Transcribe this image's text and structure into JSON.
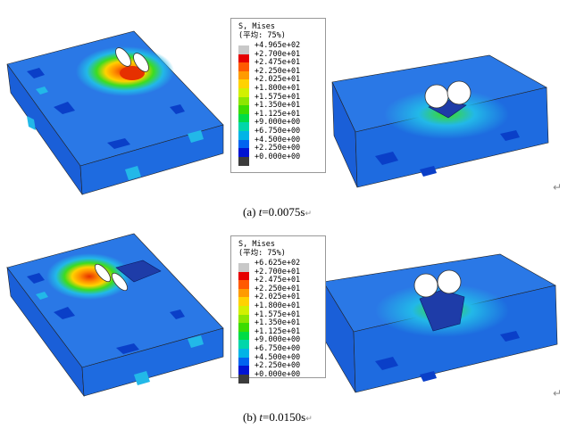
{
  "panels": [
    {
      "legend": {
        "title_line1": "S, Mises",
        "title_line2": "(平均: 75%)",
        "entries": [
          "+4.965e+02",
          "+2.700e+01",
          "+2.475e+01",
          "+2.250e+01",
          "+2.025e+01",
          "+1.800e+01",
          "+1.575e+01",
          "+1.350e+01",
          "+1.125e+01",
          "+9.000e+00",
          "+6.750e+00",
          "+4.500e+00",
          "+2.250e+00",
          "+0.000e+00"
        ]
      },
      "caption": {
        "label": "(a) ",
        "var": "t",
        "value": "=0.0075s"
      }
    },
    {
      "legend": {
        "title_line1": "S, Mises",
        "title_line2": "(平均: 75%)",
        "entries": [
          "+6.625e+02",
          "+2.700e+01",
          "+2.475e+01",
          "+2.250e+01",
          "+2.025e+01",
          "+1.800e+01",
          "+1.575e+01",
          "+1.350e+01",
          "+1.125e+01",
          "+9.000e+00",
          "+6.750e+00",
          "+4.500e+00",
          "+2.250e+00",
          "+0.000e+00"
        ]
      },
      "caption": {
        "label": "(b) ",
        "var": "t",
        "value": "=0.0150s"
      }
    }
  ],
  "legend_colors": [
    "#c8c8c8",
    "#e60000",
    "#ff5a00",
    "#ff9b00",
    "#ffd200",
    "#d2f000",
    "#8ce600",
    "#3cdc00",
    "#00dc46",
    "#00d6aa",
    "#00b4e6",
    "#0064f0",
    "#0014d2",
    "#3c3c3c"
  ],
  "paragraph_mark": "↵",
  "stress_colors": {
    "base": "#1e6be0",
    "dark": "#0a3fc8",
    "cyan": "#22b8e8",
    "green": "#3cdc20",
    "yellow": "#ffd200",
    "orange": "#ff8c00",
    "red": "#e63000"
  }
}
